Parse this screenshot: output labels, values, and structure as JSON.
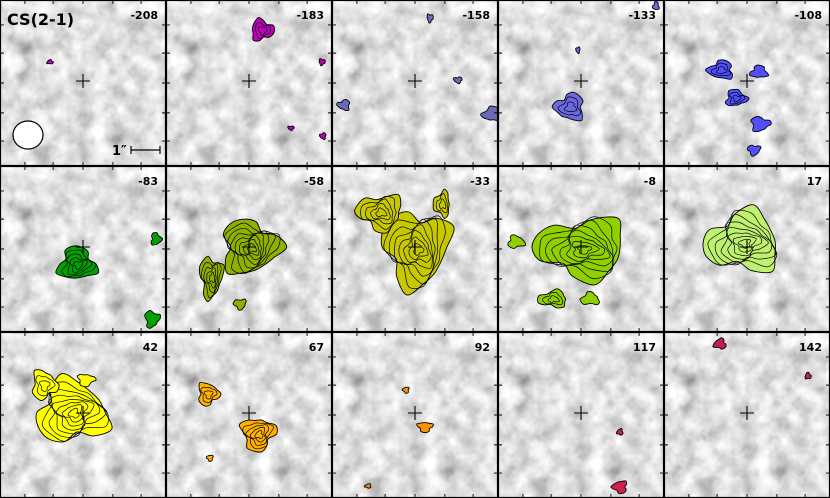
{
  "figure": {
    "title": "CS(2-1)",
    "scale_bar_label": "1″"
  },
  "channels": [
    {
      "velocity": "-208",
      "color": "#c000c0"
    },
    {
      "velocity": "-183",
      "color": "#c000c0"
    },
    {
      "velocity": "-158",
      "color": "#6a6ab8"
    },
    {
      "velocity": "-133",
      "color": "#6a6ae0"
    },
    {
      "velocity": "-108",
      "color": "#5050ff"
    },
    {
      "velocity": "-83",
      "color": "#00a000"
    },
    {
      "velocity": "-58",
      "color": "#8fb000"
    },
    {
      "velocity": "-33",
      "color": "#c8c800"
    },
    {
      "velocity": "-8",
      "color": "#90d000"
    },
    {
      "velocity": "17",
      "color": "#c0f070"
    },
    {
      "velocity": "42",
      "color": "#ffff00"
    },
    {
      "velocity": "67",
      "color": "#ffb000"
    },
    {
      "velocity": "92",
      "color": "#ff9000"
    },
    {
      "velocity": "117",
      "color": "#d02050"
    },
    {
      "velocity": "142",
      "color": "#c02050"
    }
  ]
}
